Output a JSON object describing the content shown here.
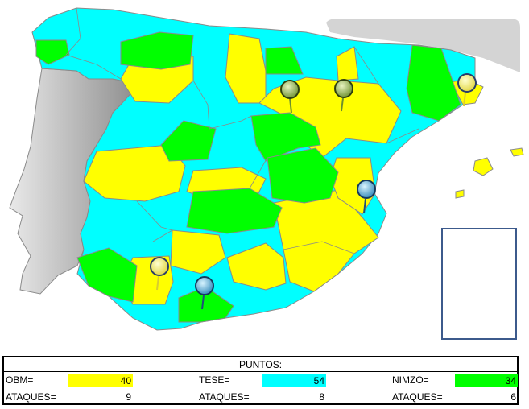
{
  "colors": {
    "obm": "#ffff00",
    "tese": "#00ffff",
    "nimzo": "#00ff00",
    "portugal": "#b7b7b7",
    "france": "#d4d4d4",
    "border": "#8a8a8a",
    "box_border": "#3c5a8c"
  },
  "pins": [
    {
      "name": "pin-green-1",
      "color": "green"
    },
    {
      "name": "pin-green-2",
      "color": "green"
    },
    {
      "name": "pin-yellow-1",
      "color": "yellow"
    },
    {
      "name": "pin-blue-1",
      "color": "blue"
    },
    {
      "name": "pin-yellow-2",
      "color": "yellow"
    },
    {
      "name": "pin-blue-2",
      "color": "blue"
    }
  ],
  "scoreboard": {
    "title": "PUNTOS:",
    "teams": [
      {
        "name": "OBM=",
        "points": "40",
        "attacks_label": "ATAQUES=",
        "attacks": "9",
        "color": "#ffff00"
      },
      {
        "name": "TESE=",
        "points": "54",
        "attacks_label": "ATAQUES=",
        "attacks": "8",
        "color": "#00ffff"
      },
      {
        "name": "NIMZO=",
        "points": "34",
        "attacks_label": "ATAQUES=",
        "attacks": "6",
        "color": "#00ff00"
      }
    ]
  }
}
